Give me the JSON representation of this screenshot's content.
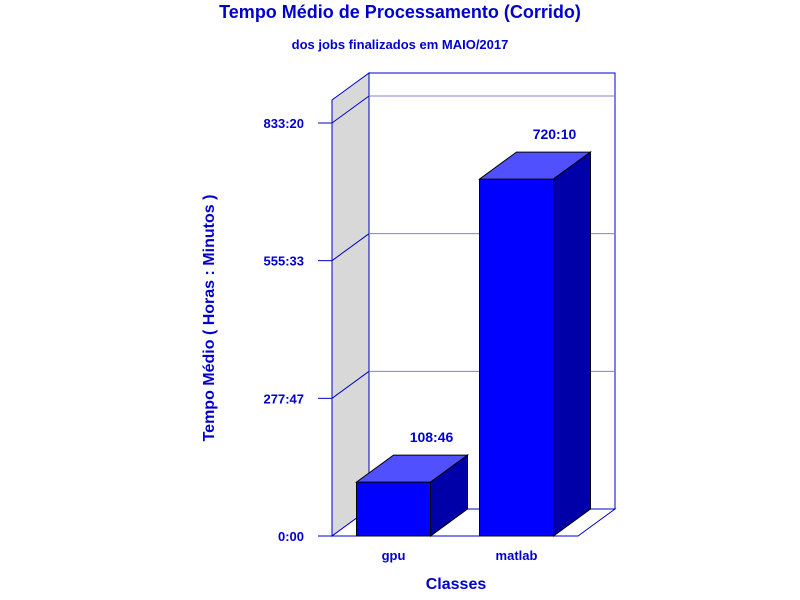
{
  "chart_data": {
    "type": "bar",
    "title": "Tempo Médio de Processamento (Corrido)",
    "subtitle": "dos jobs finalizados em MAIO/2017",
    "xlabel": "Classes",
    "ylabel": "Tempo Médio ( Horas : Minutos )",
    "categories": [
      "gpu",
      "matlab"
    ],
    "values": [
      108.77,
      720.17
    ],
    "value_labels": [
      "108:46",
      "720:10"
    ],
    "ylim": [
      0,
      833.33
    ],
    "yticks": [
      0,
      277.78,
      555.56,
      833.33
    ],
    "ytick_labels": [
      "0:00",
      "277:47",
      "555:33",
      "833:20"
    ],
    "grid": true,
    "legend": "none",
    "colors": {
      "bar_front": "#0000ff",
      "bar_top": "#5050ff",
      "bar_side": "#0000a8",
      "frame": "#0000cc",
      "wall": "#d8d8d8"
    }
  }
}
